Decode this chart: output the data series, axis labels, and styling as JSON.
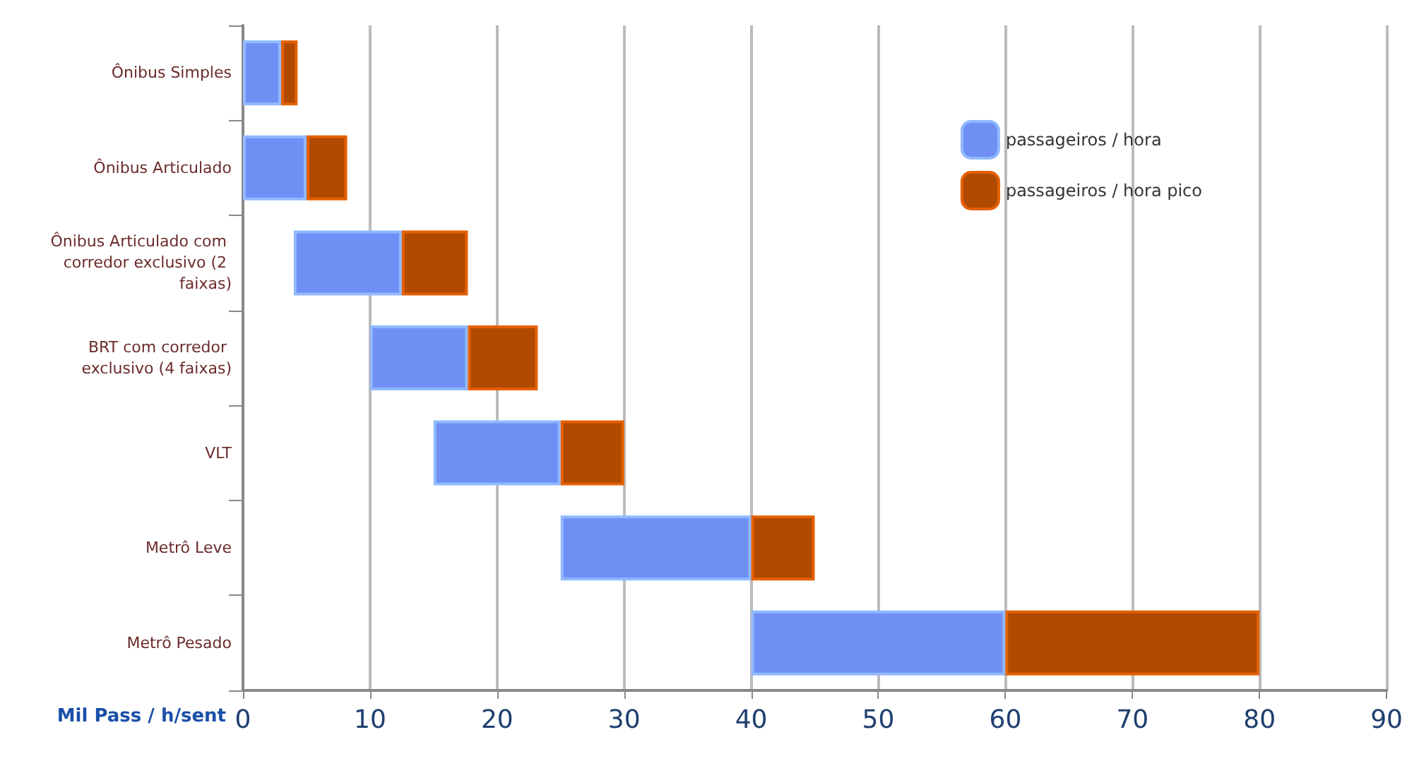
{
  "chart_data": {
    "type": "bar",
    "orientation": "horizontal",
    "categories": [
      "Ônibus Simples",
      "Ônibus Articulado",
      "Ônibus Articulado com corredor exclusivo (2 faixas)",
      "BRT com corredor exclusivo (4 faixas)",
      "VLT",
      "Metrô Leve",
      "Metrô Pesado"
    ],
    "series": [
      {
        "name": "passageiros / hora",
        "color": "#6f8ff5",
        "base": [
          0,
          0,
          4,
          10,
          15,
          25,
          40
        ],
        "values": [
          3,
          5,
          8.5,
          7.7,
          10,
          15,
          20
        ]
      },
      {
        "name": "passageiros / hora pico",
        "color": "#b04a00",
        "base": [
          3,
          5,
          12.5,
          17.7,
          25,
          40,
          60
        ],
        "values": [
          1.3,
          3.2,
          5.2,
          5.5,
          5,
          5,
          20
        ]
      }
    ],
    "xlabel": "Mil Pass / h/sent",
    "xlim": [
      0,
      90
    ],
    "xticks": [
      0,
      10,
      20,
      30,
      40,
      50,
      60,
      70,
      80,
      90
    ],
    "grid": "x",
    "legend": "top right"
  }
}
